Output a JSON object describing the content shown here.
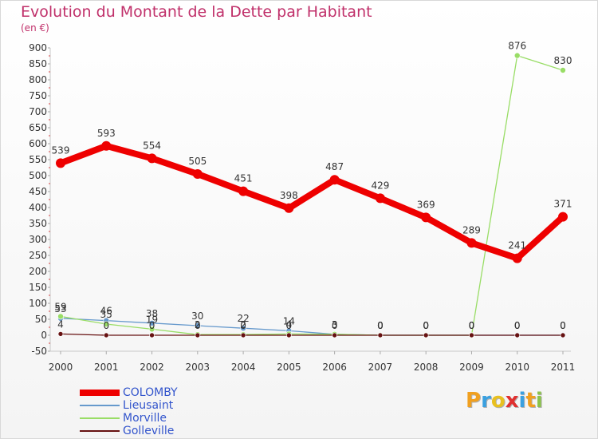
{
  "header": {
    "title": "Evolution du Montant de la Dette par Habitant",
    "unit": "(en €)"
  },
  "brand": {
    "letters": [
      {
        "ch": "P",
        "color": "#f0a020"
      },
      {
        "ch": "r",
        "color": "#3aa0e0"
      },
      {
        "ch": "o",
        "color": "#e8c020"
      },
      {
        "ch": "x",
        "color": "#e03030"
      },
      {
        "ch": "i",
        "color": "#3aa0e0"
      },
      {
        "ch": "t",
        "color": "#f0a020"
      },
      {
        "ch": "i",
        "color": "#8bc34a"
      }
    ]
  },
  "chart_data": {
    "type": "line",
    "title": "Evolution du Montant de la Dette par Habitant",
    "ylabel": "(en €)",
    "xlabel": "",
    "x": [
      "2000",
      "2001",
      "2002",
      "2003",
      "2004",
      "2005",
      "2006",
      "2007",
      "2008",
      "2009",
      "2010",
      "2011"
    ],
    "ylim": [
      -50,
      900
    ],
    "yticks": [
      -50,
      0,
      50,
      100,
      150,
      200,
      250,
      300,
      350,
      400,
      450,
      500,
      550,
      600,
      650,
      700,
      750,
      800,
      850,
      900
    ],
    "grid": false,
    "legend_position": "bottom-left",
    "series": [
      {
        "name": "COLOMBY",
        "color": "#ee0000",
        "values": [
          539,
          593,
          554,
          505,
          451,
          398,
          487,
          429,
          369,
          289,
          241,
          371
        ],
        "labels": [
          "539",
          "593",
          "554",
          "505",
          "451",
          "398",
          "487",
          "429",
          "369",
          "289",
          "241",
          "371"
        ]
      },
      {
        "name": "Lieusaint",
        "color": "#6699cc",
        "values": [
          53,
          46,
          38,
          30,
          22,
          14,
          3,
          0,
          0,
          0,
          0,
          0
        ],
        "labels": [
          "53",
          "46",
          "38",
          "30",
          "22",
          "14",
          "3",
          "0",
          "0",
          "0",
          "0",
          "0"
        ]
      },
      {
        "name": "Morville",
        "color": "#99dd66",
        "values": [
          59,
          35,
          19,
          2,
          2,
          4,
          3,
          0,
          0,
          0,
          876,
          830
        ],
        "labels": [
          "59",
          "35",
          "19",
          "2",
          "2",
          "4",
          "3",
          "0",
          "0",
          "0",
          "876",
          "830"
        ]
      },
      {
        "name": "Golleville",
        "color": "#661111",
        "values": [
          4,
          0,
          0,
          0,
          0,
          0,
          0,
          0,
          0,
          0,
          0,
          0
        ],
        "labels": [
          "4",
          "0",
          "0",
          "0",
          "0",
          "0",
          "0",
          "0",
          "0",
          "0",
          "0",
          "0"
        ]
      }
    ]
  }
}
